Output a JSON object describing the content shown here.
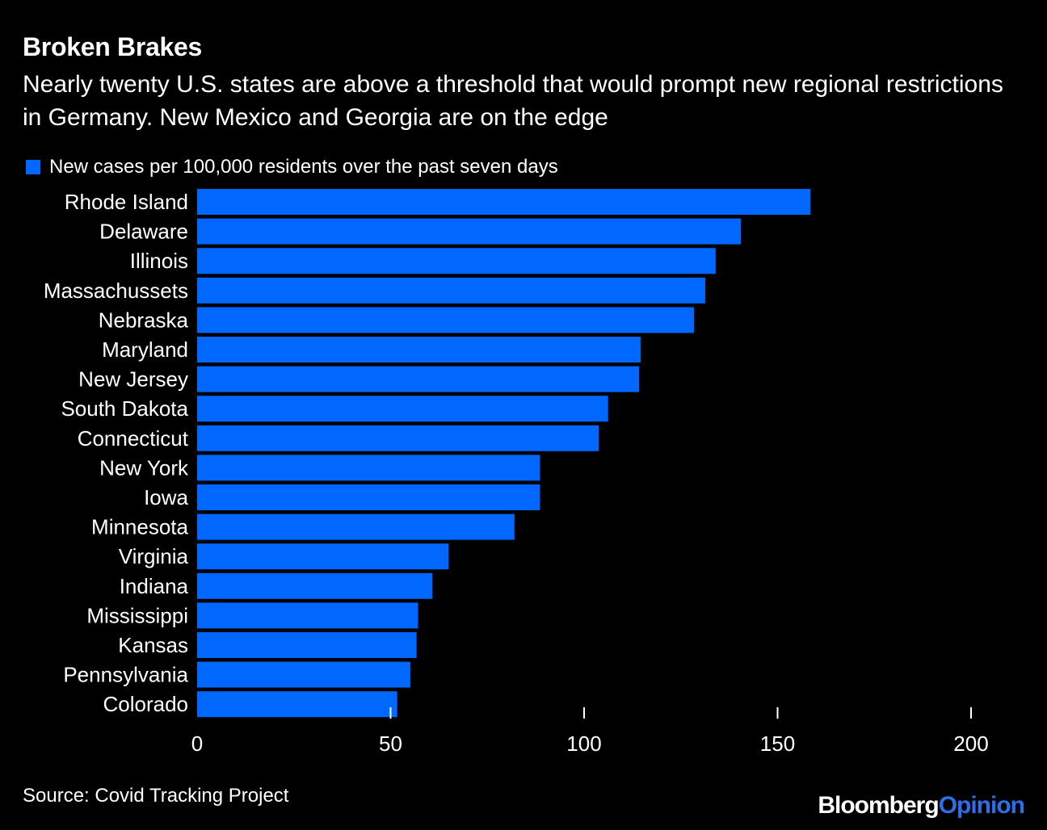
{
  "title": "Broken Brakes",
  "subtitle": "Nearly twenty U.S. states are above a threshold that would prompt new regional restrictions in Germany. New Mexico and Georgia are on the edge",
  "legend": {
    "label": "New cases per 100,000 residents over the past seven days",
    "color": "#0068ff"
  },
  "source": "Source: Covid Tracking Project",
  "brand": {
    "primary": "Bloomberg",
    "accent": "Opinion",
    "accent_color": "#2d6ee9"
  },
  "chart_data": {
    "type": "bar",
    "orientation": "horizontal",
    "categories": [
      "Rhode Island",
      "Delaware",
      "Illinois",
      "Massachussets",
      "Nebraska",
      "Maryland",
      "New Jersey",
      "South Dakota",
      "Connecticut",
      "New York",
      "Iowa",
      "Minnesota",
      "Virginia",
      "Indiana",
      "Mississippi",
      "Kansas",
      "Pennsylvania",
      "Colorado"
    ],
    "series": [
      {
        "name": "New cases per 100,000 residents over the past seven days",
        "values": [
          158.5,
          140.5,
          134,
          131.3,
          128.4,
          114.6,
          114.2,
          106.2,
          103.8,
          88.6,
          88.6,
          82,
          65,
          60.8,
          57.1,
          56.7,
          55.1,
          51.7
        ]
      }
    ],
    "xlim": [
      0,
      200
    ],
    "xticks": [
      0,
      50,
      100,
      150,
      200
    ],
    "bar_color": "#0068ff",
    "grid": false
  }
}
